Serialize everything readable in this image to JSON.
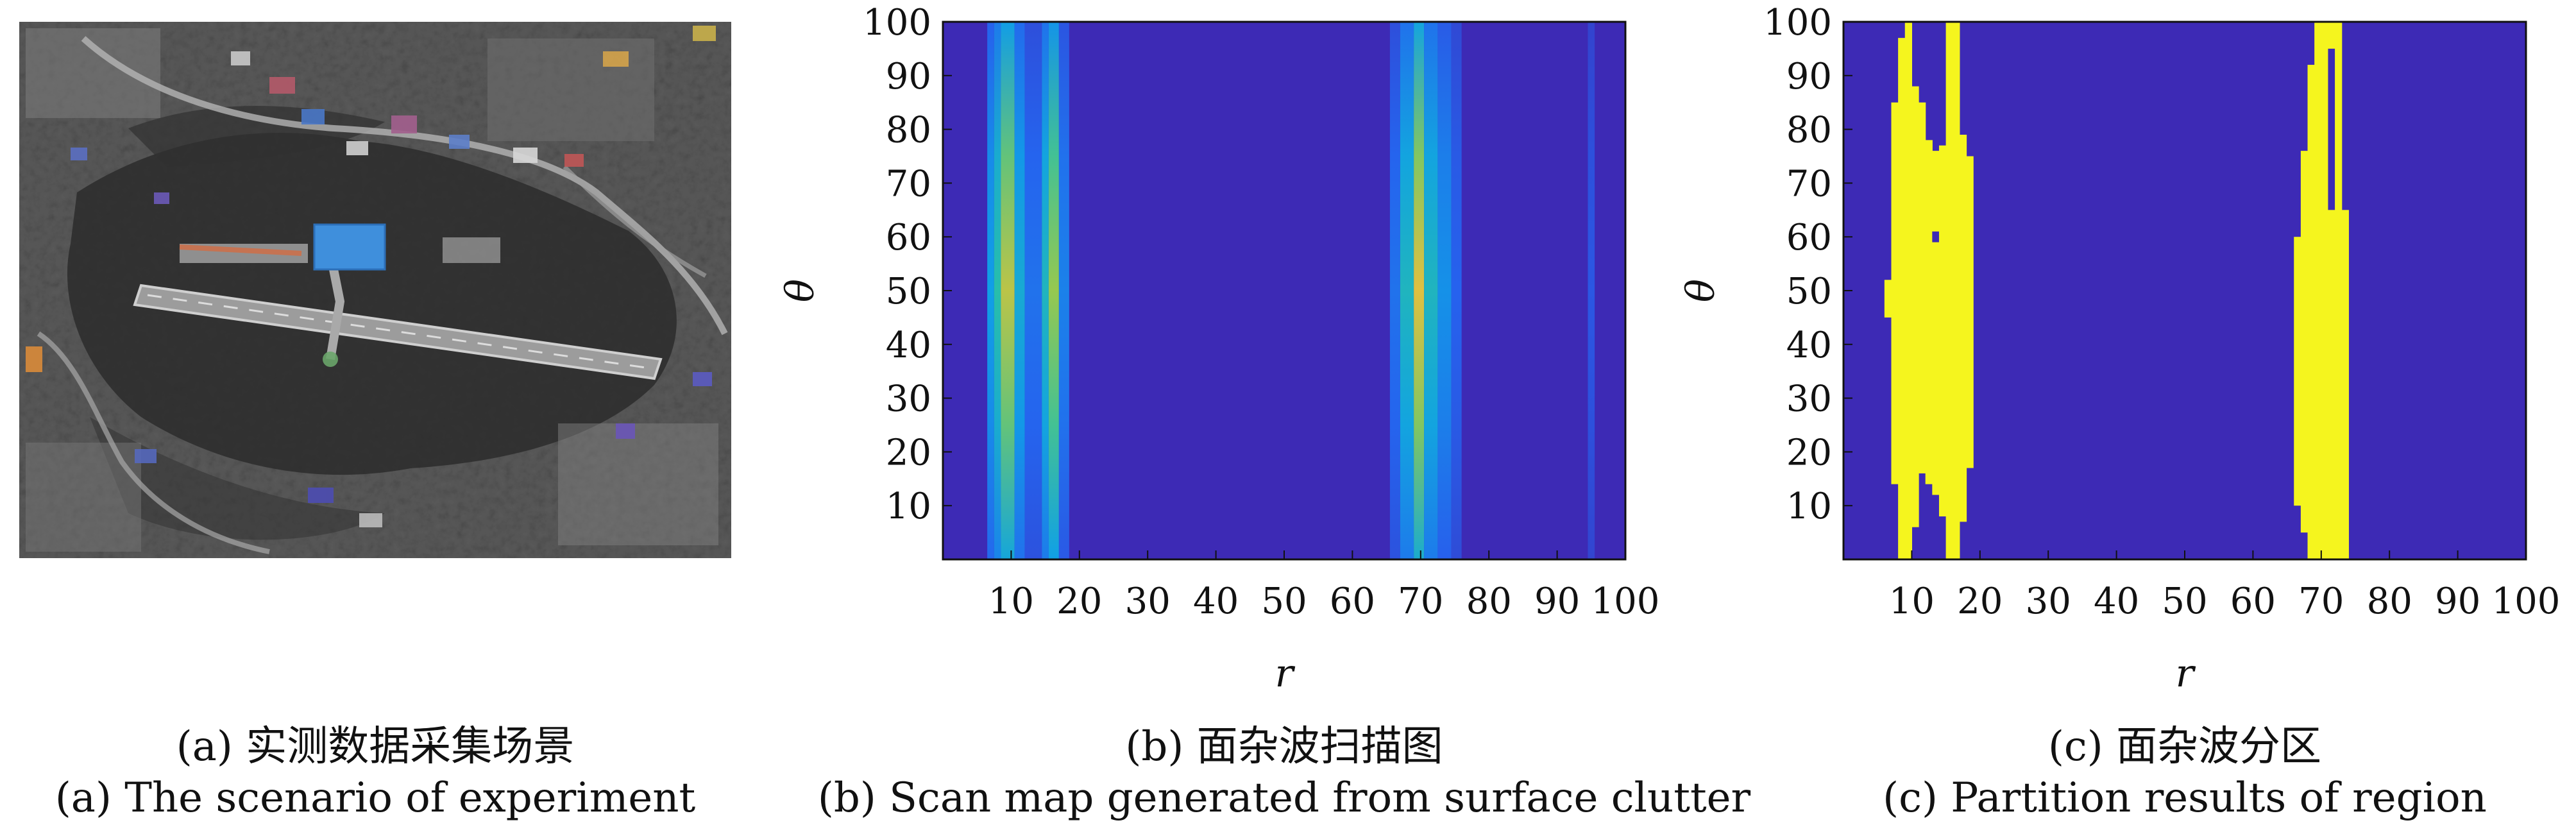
{
  "captions": {
    "a_cn": "(a) 实测数据采集场景",
    "a_en": "(a) The scenario of experiment",
    "b_cn": "(b) 面杂波扫描图",
    "b_en": "(b) Scan map generated from surface clutter",
    "c_cn": "(c) 面杂波分区",
    "c_en": "(c) Partition results of region"
  },
  "colors": {
    "background_blue": "#3d2ab5",
    "region_yellow": "#f5f51e",
    "aerial_base": "#4c4c4c",
    "hangar_blue": "#3f8fdc"
  },
  "chart_data": [
    {
      "panel": "b",
      "type": "heatmap",
      "xlabel": "r",
      "ylabel": "θ",
      "xlim": [
        0,
        100
      ],
      "ylim": [
        0,
        100
      ],
      "xticks": [
        10,
        20,
        30,
        40,
        50,
        60,
        70,
        80,
        90,
        100
      ],
      "yticks": [
        10,
        20,
        30,
        40,
        50,
        60,
        70,
        80,
        90,
        100
      ],
      "colormap": "parula",
      "grid": false,
      "bands": [
        {
          "x0": 6.5,
          "x1": 7.5,
          "intensity": 0.45
        },
        {
          "x0": 7.5,
          "x1": 8.5,
          "intensity": 0.6
        },
        {
          "x0": 8.5,
          "x1": 10.5,
          "intensity": 0.8
        },
        {
          "x0": 10.5,
          "x1": 12.0,
          "intensity": 0.5
        },
        {
          "x0": 12.0,
          "x1": 14.5,
          "intensity": 0.3
        },
        {
          "x0": 14.5,
          "x1": 15.5,
          "intensity": 0.55
        },
        {
          "x0": 15.5,
          "x1": 17.0,
          "intensity": 0.75
        },
        {
          "x0": 17.0,
          "x1": 18.5,
          "intensity": 0.35
        },
        {
          "x0": 65.5,
          "x1": 67.0,
          "intensity": 0.3
        },
        {
          "x0": 67.0,
          "x1": 69.0,
          "intensity": 0.55
        },
        {
          "x0": 69.0,
          "x1": 70.5,
          "intensity": 0.85
        },
        {
          "x0": 70.5,
          "x1": 72.5,
          "intensity": 0.55
        },
        {
          "x0": 72.5,
          "x1": 74.5,
          "intensity": 0.4
        },
        {
          "x0": 74.5,
          "x1": 76.0,
          "intensity": 0.25
        },
        {
          "x0": 94.5,
          "x1": 95.5,
          "intensity": 0.2
        }
      ]
    },
    {
      "panel": "c",
      "type": "heatmap",
      "xlabel": "r",
      "ylabel": "θ",
      "xlim": [
        0,
        100
      ],
      "ylim": [
        0,
        100
      ],
      "xticks": [
        10,
        20,
        30,
        40,
        50,
        60,
        70,
        80,
        90,
        100
      ],
      "yticks": [
        10,
        20,
        30,
        40,
        50,
        60,
        70,
        80,
        90,
        100
      ],
      "classes": [
        "background",
        "clutter-region"
      ],
      "regions": [
        {
          "name": "left",
          "columns": [
            {
              "x0": 6,
              "x1": 7,
              "y0": 45,
              "y1": 52
            },
            {
              "x0": 7,
              "x1": 8,
              "y0": 14,
              "y1": 85
            },
            {
              "x0": 8,
              "x1": 9,
              "y0": 0,
              "y1": 97
            },
            {
              "x0": 9,
              "x1": 10,
              "y0": 0,
              "y1": 100
            },
            {
              "x0": 10,
              "x1": 11,
              "y0": 6,
              "y1": 88
            },
            {
              "x0": 11,
              "x1": 12,
              "y0": 16,
              "y1": 85
            },
            {
              "x0": 12,
              "x1": 13,
              "y0": 14,
              "y1": 78
            },
            {
              "x0": 13,
              "x1": 14,
              "y0": 12,
              "y1": 76
            },
            {
              "x0": 14,
              "x1": 15,
              "y0": 8,
              "y1": 77
            },
            {
              "x0": 15,
              "x1": 16,
              "y0": 0,
              "y1": 100
            },
            {
              "x0": 16,
              "x1": 17,
              "y0": 0,
              "y1": 100
            },
            {
              "x0": 17,
              "x1": 18,
              "y0": 7,
              "y1": 79
            },
            {
              "x0": 18,
              "x1": 19,
              "y0": 17,
              "y1": 75
            }
          ]
        },
        {
          "name": "right",
          "columns": [
            {
              "x0": 66,
              "x1": 67,
              "y0": 10,
              "y1": 60
            },
            {
              "x0": 67,
              "x1": 68,
              "y0": 5,
              "y1": 76
            },
            {
              "x0": 68,
              "x1": 69,
              "y0": 0,
              "y1": 92
            },
            {
              "x0": 69,
              "x1": 70,
              "y0": 0,
              "y1": 100
            },
            {
              "x0": 70,
              "x1": 71,
              "y0": 0,
              "y1": 100
            },
            {
              "x0": 71,
              "x1": 72,
              "y0": 0,
              "y1": 100
            },
            {
              "x0": 72,
              "x1": 73,
              "y0": 0,
              "y1": 100
            },
            {
              "x0": 73,
              "x1": 74,
              "y0": 0,
              "y1": 65
            }
          ]
        }
      ],
      "holes": [
        {
          "x0": 13,
          "x1": 14,
          "y0": 59,
          "y1": 61
        },
        {
          "x0": 71,
          "x1": 72,
          "y0": 65,
          "y1": 95
        }
      ]
    }
  ]
}
